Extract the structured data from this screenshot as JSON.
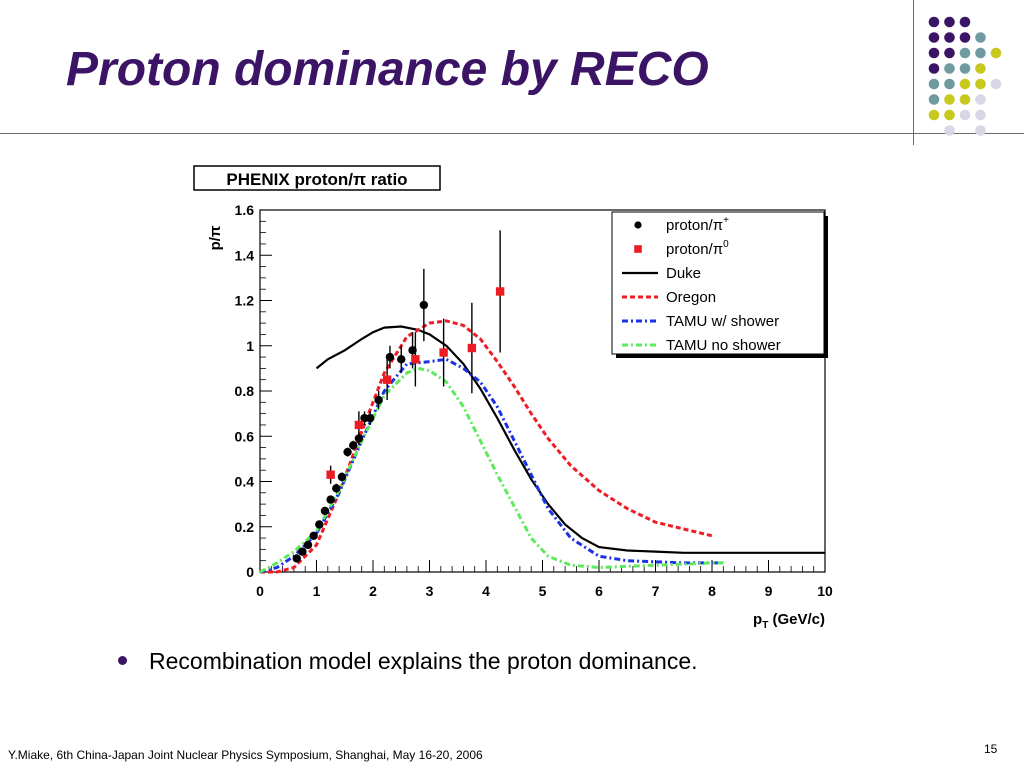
{
  "slide": {
    "title": "Proton dominance by RECO",
    "bullet": "Recombination model explains the proton dominance.",
    "footer": "Y.Miake, 6th China-Japan Joint Nuclear Physics Symposium, Shanghai, May 16-20, 2006",
    "page_number": "15"
  },
  "colors": {
    "title": "#3b1466",
    "dot_purple": "#3b1466",
    "dot_teal": "#6e9aa0",
    "dot_yellow": "#c8c81e",
    "dot_lavender": "#d7d7e8"
  },
  "decoration": {
    "dot_grid": [
      [
        "purple",
        "purple",
        "purple",
        "",
        ""
      ],
      [
        "purple",
        "purple",
        "purple",
        "teal",
        ""
      ],
      [
        "purple",
        "purple",
        "teal",
        "teal",
        "yellow"
      ],
      [
        "purple",
        "teal",
        "teal",
        "yellow",
        ""
      ],
      [
        "teal",
        "teal",
        "yellow",
        "yellow",
        "lavender"
      ],
      [
        "teal",
        "yellow",
        "yellow",
        "lavender",
        ""
      ],
      [
        "yellow",
        "yellow",
        "lavender",
        "lavender",
        ""
      ],
      [
        "",
        "lavender",
        "",
        "lavender",
        ""
      ]
    ]
  },
  "chart_data": {
    "type": "scatter",
    "title": "PHENIX proton/π ratio",
    "xlabel_main": "p",
    "xlabel_sub": "T",
    "xlabel_unit": "(GeV/c)",
    "ylabel": "p/π",
    "xlim": [
      0,
      10
    ],
    "ylim": [
      0,
      1.6
    ],
    "xticks": [
      "0",
      "1",
      "2",
      "3",
      "4",
      "5",
      "6",
      "7",
      "8",
      "9",
      "10"
    ],
    "yticks": [
      "0",
      "0.2",
      "0.4",
      "0.6",
      "0.8",
      "1",
      "1.2",
      "1.4",
      "1.6"
    ],
    "grid": false,
    "legend_position": "top-right",
    "points": [
      {
        "name": "proton/π+",
        "marker": "circle",
        "color": "#000000",
        "data": [
          {
            "x": 0.65,
            "y": 0.06,
            "e": 0.01
          },
          {
            "x": 0.75,
            "y": 0.09,
            "e": 0.01
          },
          {
            "x": 0.85,
            "y": 0.12,
            "e": 0.01
          },
          {
            "x": 0.95,
            "y": 0.16,
            "e": 0.01
          },
          {
            "x": 1.05,
            "y": 0.21,
            "e": 0.01
          },
          {
            "x": 1.15,
            "y": 0.27,
            "e": 0.01
          },
          {
            "x": 1.25,
            "y": 0.32,
            "e": 0.01
          },
          {
            "x": 1.35,
            "y": 0.37,
            "e": 0.02
          },
          {
            "x": 1.45,
            "y": 0.42,
            "e": 0.02
          },
          {
            "x": 1.55,
            "y": 0.53,
            "e": 0.02
          },
          {
            "x": 1.65,
            "y": 0.56,
            "e": 0.02
          },
          {
            "x": 1.75,
            "y": 0.59,
            "e": 0.03
          },
          {
            "x": 1.85,
            "y": 0.68,
            "e": 0.03
          },
          {
            "x": 1.95,
            "y": 0.68,
            "e": 0.03
          },
          {
            "x": 2.1,
            "y": 0.76,
            "e": 0.04
          },
          {
            "x": 2.3,
            "y": 0.95,
            "e": 0.05
          },
          {
            "x": 2.5,
            "y": 0.94,
            "e": 0.06
          },
          {
            "x": 2.7,
            "y": 0.98,
            "e": 0.08
          },
          {
            "x": 2.9,
            "y": 1.18,
            "e": 0.16
          }
        ]
      },
      {
        "name": "proton/π0",
        "marker": "square",
        "color": "#ee1c24",
        "data": [
          {
            "x": 1.25,
            "y": 0.43,
            "e": 0.04
          },
          {
            "x": 1.75,
            "y": 0.65,
            "e": 0.06
          },
          {
            "x": 2.25,
            "y": 0.85,
            "e": 0.09
          },
          {
            "x": 2.75,
            "y": 0.94,
            "e": 0.12
          },
          {
            "x": 3.25,
            "y": 0.97,
            "e": 0.15
          },
          {
            "x": 3.75,
            "y": 0.99,
            "e": 0.2
          },
          {
            "x": 4.25,
            "y": 1.24,
            "e": 0.27
          }
        ]
      }
    ],
    "curves": [
      {
        "name": "Duke",
        "style": "solid",
        "color": "#000000",
        "x": [
          1.0,
          1.2,
          1.5,
          1.8,
          2.0,
          2.2,
          2.5,
          2.8,
          3.0,
          3.3,
          3.6,
          3.9,
          4.2,
          4.5,
          4.8,
          5.1,
          5.4,
          5.7,
          6.0,
          6.5,
          7.0,
          7.5,
          8.0,
          9.0,
          10.0
        ],
        "y": [
          0.9,
          0.94,
          0.98,
          1.03,
          1.06,
          1.08,
          1.085,
          1.07,
          1.05,
          1.0,
          0.92,
          0.81,
          0.68,
          0.54,
          0.41,
          0.3,
          0.21,
          0.15,
          0.11,
          0.095,
          0.09,
          0.085,
          0.085,
          0.085,
          0.085
        ]
      },
      {
        "name": "Oregon",
        "style": "dashed",
        "color": "#ee1c24",
        "x": [
          0.0,
          0.3,
          0.6,
          1.0,
          1.4,
          1.8,
          2.2,
          2.6,
          3.0,
          3.3,
          3.6,
          3.9,
          4.2,
          4.5,
          4.8,
          5.1,
          5.5,
          6.0,
          6.5,
          7.0,
          7.5,
          8.0
        ],
        "y": [
          0.0,
          0.0,
          0.02,
          0.12,
          0.35,
          0.62,
          0.88,
          1.04,
          1.1,
          1.11,
          1.09,
          1.03,
          0.93,
          0.82,
          0.7,
          0.59,
          0.47,
          0.36,
          0.28,
          0.22,
          0.19,
          0.16
        ]
      },
      {
        "name": "TAMU w/ shower",
        "style": "dashdot",
        "color": "#1a32e6",
        "x": [
          0.0,
          0.3,
          0.6,
          1.0,
          1.4,
          1.8,
          2.2,
          2.6,
          3.0,
          3.3,
          3.6,
          3.9,
          4.2,
          4.5,
          4.8,
          5.1,
          5.5,
          6.0,
          6.5,
          7.0,
          7.5,
          8.0,
          8.2
        ],
        "y": [
          0.0,
          0.02,
          0.07,
          0.17,
          0.35,
          0.58,
          0.8,
          0.92,
          0.93,
          0.94,
          0.9,
          0.84,
          0.73,
          0.58,
          0.43,
          0.28,
          0.15,
          0.07,
          0.05,
          0.045,
          0.04,
          0.04,
          0.04
        ]
      },
      {
        "name": "TAMU no shower",
        "style": "dashdot",
        "color": "#5ee85e",
        "x": [
          0.0,
          0.3,
          0.6,
          1.0,
          1.4,
          1.8,
          2.2,
          2.6,
          2.8,
          3.0,
          3.3,
          3.6,
          3.9,
          4.2,
          4.5,
          4.8,
          5.1,
          5.5,
          6.0,
          6.5,
          7.0,
          7.5,
          8.0,
          8.2
        ],
        "y": [
          0.0,
          0.04,
          0.09,
          0.18,
          0.36,
          0.58,
          0.78,
          0.88,
          0.9,
          0.89,
          0.84,
          0.73,
          0.58,
          0.43,
          0.29,
          0.15,
          0.07,
          0.03,
          0.02,
          0.025,
          0.03,
          0.035,
          0.04,
          0.04
        ]
      }
    ],
    "legend": [
      {
        "label": "proton/π",
        "sup": "+",
        "kind": "circle",
        "color": "#000000"
      },
      {
        "label": "proton/π",
        "sup": "0",
        "kind": "square",
        "color": "#ee1c24"
      },
      {
        "label": "Duke",
        "kind": "solid",
        "color": "#000000"
      },
      {
        "label": "Oregon",
        "kind": "dashed",
        "color": "#ee1c24"
      },
      {
        "label": "TAMU w/ shower",
        "kind": "dashdot",
        "color": "#1a32e6"
      },
      {
        "label": "TAMU no shower",
        "kind": "dashdot",
        "color": "#5ee85e"
      }
    ]
  }
}
